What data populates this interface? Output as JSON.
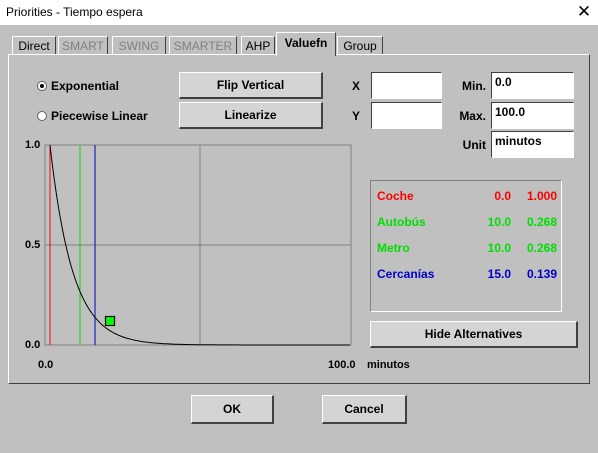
{
  "window": {
    "title": "Priorities - Tiempo espera",
    "close_glyph": "✕"
  },
  "tabs": [
    {
      "label": "Direct",
      "state": "normal"
    },
    {
      "label": "SMART",
      "state": "disabled"
    },
    {
      "label": "SWING",
      "state": "disabled"
    },
    {
      "label": "SMARTER",
      "state": "disabled"
    },
    {
      "label": "AHP",
      "state": "normal"
    },
    {
      "label": "Valuefn",
      "state": "active"
    },
    {
      "label": "Group",
      "state": "normal"
    }
  ],
  "function_type": {
    "options": [
      {
        "label": "Exponential",
        "selected": true
      },
      {
        "label": "Piecewise Linear",
        "selected": false
      }
    ]
  },
  "buttons": {
    "flip_vertical": "Flip Vertical",
    "linearize": "Linearize",
    "hide_alternatives": "Hide Alternatives",
    "ok": "OK",
    "cancel": "Cancel"
  },
  "point_fields": {
    "x_label": "X",
    "x_value": "",
    "y_label": "Y",
    "y_value": ""
  },
  "range": {
    "min_label": "Min.",
    "min_value": "0.0",
    "max_label": "Max.",
    "max_value": "100.0",
    "unit_label": "Unit",
    "unit_value": "minutos"
  },
  "plot": {
    "y_top_label": "1.0",
    "y_mid_label": "0.5",
    "y_bottom_label": "0.0",
    "x_left_label": "0.0",
    "x_right_label": "100.0",
    "x_unit_label": "minutos",
    "curve_color": "#000000",
    "handle_color": "#00ff00",
    "grid_color": "#808080",
    "handle_x": 20,
    "handle_y": 0.12
  },
  "alternatives": [
    {
      "name": "Coche",
      "value": "0.0",
      "weight": "1.000",
      "color": "#ff0000",
      "x": 0.0
    },
    {
      "name": "Autobús",
      "value": "10.0",
      "weight": "0.268",
      "color": "#00dd00",
      "x": 10.0
    },
    {
      "name": "Metro",
      "value": "10.0",
      "weight": "0.268",
      "color": "#00dd00",
      "x": 10.0
    },
    {
      "name": "Cercanías",
      "value": "15.0",
      "weight": "0.139",
      "color": "#0000cc",
      "x": 15.0
    }
  ]
}
